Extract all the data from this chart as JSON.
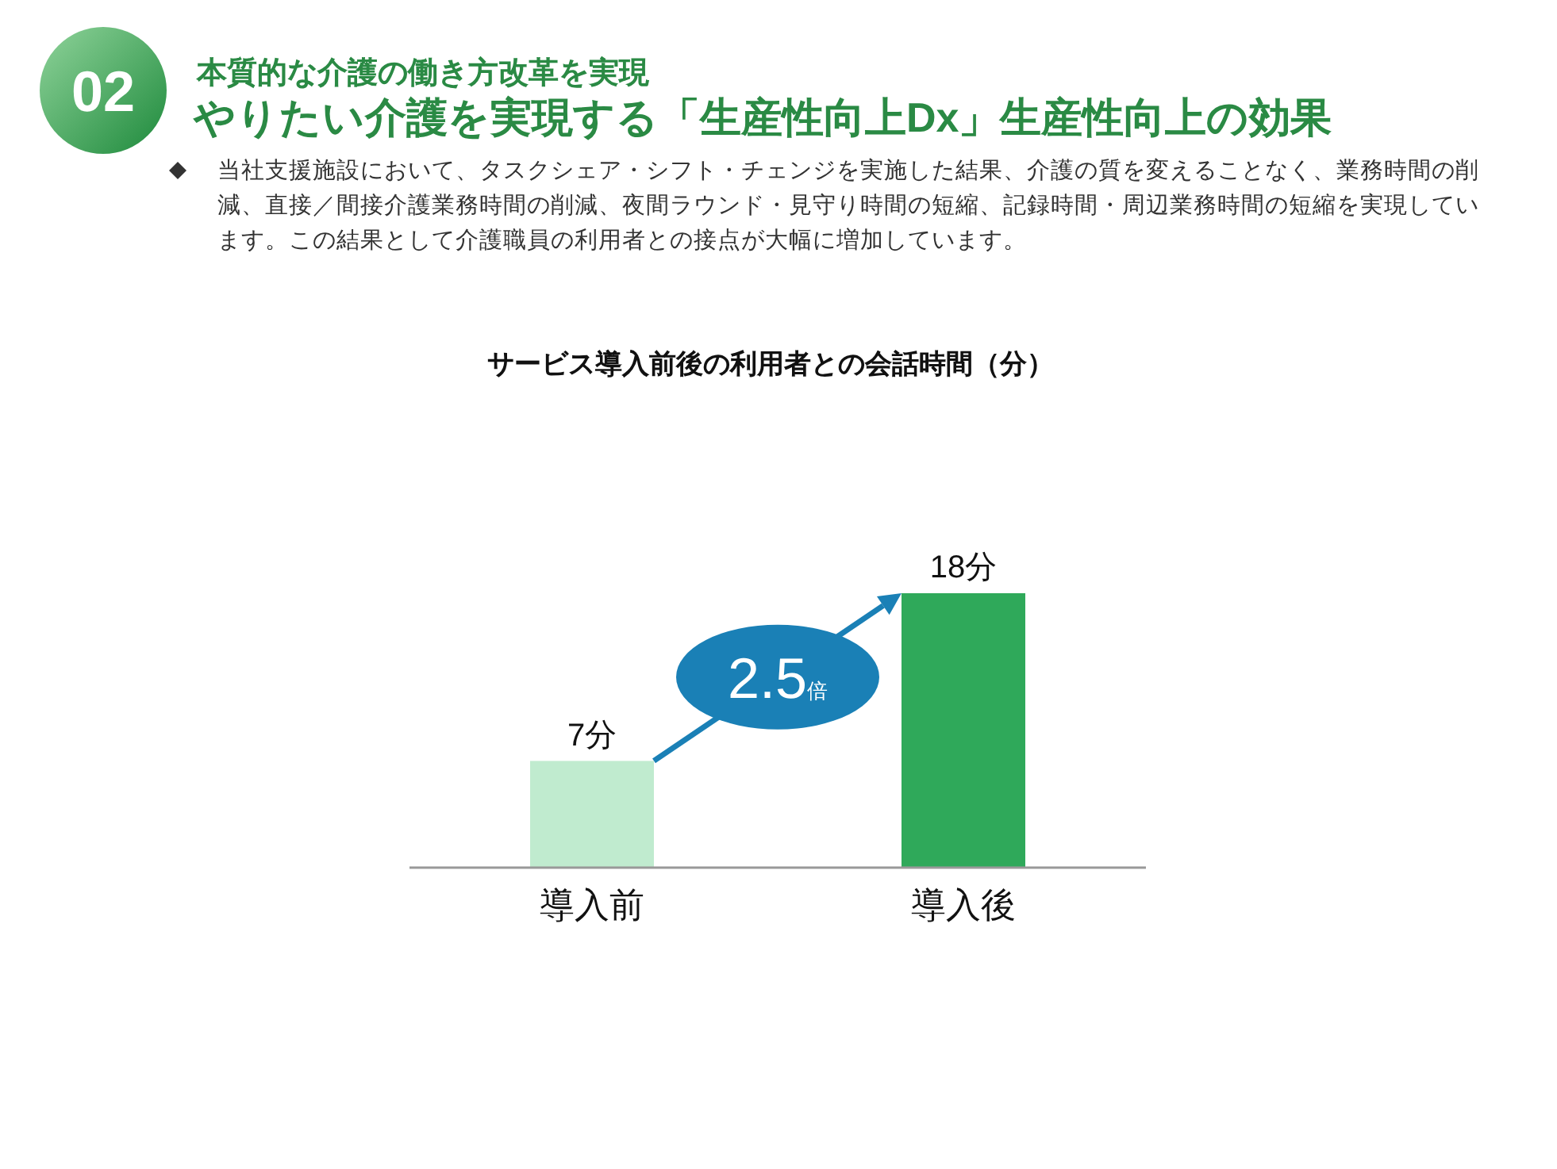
{
  "chart_data": {
    "type": "bar",
    "title": "サービス導入前後の利用者との会話時間（分）",
    "categories": [
      "導入前",
      "導入後"
    ],
    "values": [
      7,
      18
    ],
    "colors": [
      "#c0ebcf",
      "#2fa95a"
    ],
    "value_labels": [
      "7分",
      "18分"
    ],
    "annotations": [
      "02",
      "本質的な介護の働き方改革を実現",
      "やりたい介護を実現する「生産性向上Dx」生産性向上の効果",
      "当社支援施設において、タスクシェア・シフト・チェンジを実施した結果、介護の質を変えることなく、業務時間の削減、直接／間接介護業務時間の削減、夜間ラウンド・見守り時間の短縮、記録時間・周辺業務時間の短縮を実現しています。この結果として介護職員の利用者との接点が大幅に増加しています。",
      "2.5倍"
    ]
  }
}
